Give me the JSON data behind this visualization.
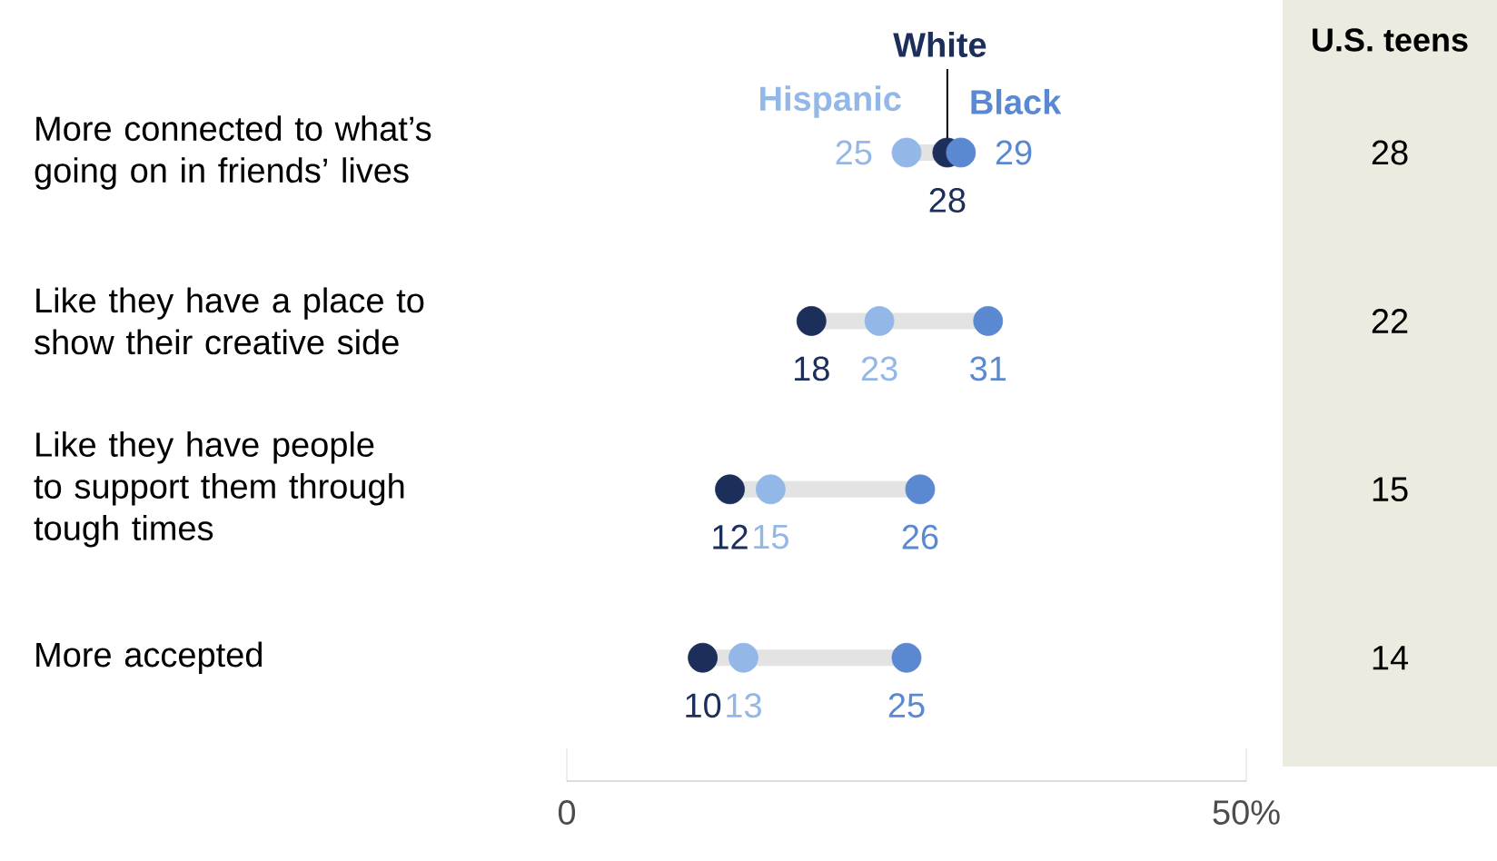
{
  "chart_data": [
    {
      "type": "scatter",
      "orientation": "horizontal",
      "marker": "circle",
      "categories": [
        "More connected to what’s going on in friends’ lives",
        "Like they have a place to show their creative side",
        "Like they have people to support them through tough times",
        "More accepted"
      ],
      "series": [
        {
          "name": "Hispanic",
          "color": "#93b7e6",
          "values": [
            25,
            23,
            15,
            13
          ],
          "value_labels": [
            "25",
            "23",
            "15",
            "13"
          ]
        },
        {
          "name": "White",
          "color": "#1c2f5b",
          "values": [
            28,
            18,
            12,
            10
          ],
          "value_labels": [
            "28",
            "18",
            "12",
            "10"
          ]
        },
        {
          "name": "Black",
          "color": "#5a88d1",
          "values": [
            29,
            31,
            26,
            25
          ],
          "value_labels": [
            "29",
            "31",
            "26",
            "25"
          ]
        }
      ],
      "xlim": [
        0,
        50
      ],
      "xticks": [
        {
          "value": 0,
          "label": "0"
        },
        {
          "value": 50,
          "label": "50%"
        }
      ]
    },
    {
      "type": "other",
      "title": "U.S. teens",
      "color": "#ecebdf",
      "values": [
        28,
        22,
        15,
        14
      ],
      "data_labels": true
    }
  ]
}
